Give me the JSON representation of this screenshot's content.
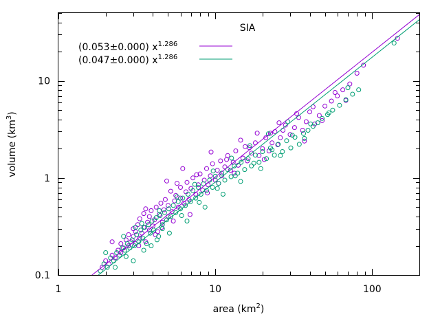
{
  "chart_data": {
    "type": "scatter",
    "title": "SIA",
    "xlabel_main": "area (km",
    "xlabel_sup": "2",
    "xlabel_end": ")",
    "ylabel_main": "volume (km",
    "ylabel_sup": "3",
    "ylabel_end": ")",
    "xscale": "log",
    "yscale": "log",
    "xlim": [
      1,
      200
    ],
    "ylim": [
      0.1,
      50
    ],
    "xticks": [
      {
        "v": 1,
        "label": "1"
      },
      {
        "v": 10,
        "label": "10"
      },
      {
        "v": 100,
        "label": "100"
      }
    ],
    "yticks": [
      {
        "v": 0.1,
        "label": "0.1"
      },
      {
        "v": 1,
        "label": "1"
      },
      {
        "v": 10,
        "label": "10"
      }
    ],
    "grid": false,
    "legend_position": "top-left",
    "series": [
      {
        "name_main": "(0.053±0.000) x",
        "name_sup": "1.286",
        "color": "#9400d3",
        "marker": "open-circle",
        "fit": {
          "a": 0.053,
          "b": 1.286
        },
        "points": [
          [
            1.9,
            0.12
          ],
          [
            2.0,
            0.14
          ],
          [
            2.1,
            0.13
          ],
          [
            2.2,
            0.16
          ],
          [
            2.3,
            0.15
          ],
          [
            2.4,
            0.18
          ],
          [
            2.5,
            0.17
          ],
          [
            2.5,
            0.21
          ],
          [
            2.6,
            0.19
          ],
          [
            2.7,
            0.23
          ],
          [
            2.8,
            0.2
          ],
          [
            2.8,
            0.26
          ],
          [
            2.9,
            0.22
          ],
          [
            3.0,
            0.25
          ],
          [
            3.0,
            0.3
          ],
          [
            3.1,
            0.21
          ],
          [
            3.1,
            0.28
          ],
          [
            3.2,
            0.33
          ],
          [
            3.3,
            0.24
          ],
          [
            3.3,
            0.38
          ],
          [
            3.4,
            0.27
          ],
          [
            3.5,
            0.31
          ],
          [
            3.5,
            0.43
          ],
          [
            3.6,
            0.22
          ],
          [
            3.7,
            0.35
          ],
          [
            3.8,
            0.29
          ],
          [
            3.8,
            0.4
          ],
          [
            3.9,
            0.46
          ],
          [
            4.0,
            0.32
          ],
          [
            4.1,
            0.37
          ],
          [
            4.2,
            0.5
          ],
          [
            4.3,
            0.28
          ],
          [
            4.4,
            0.42
          ],
          [
            4.5,
            0.55
          ],
          [
            4.6,
            0.35
          ],
          [
            4.7,
            0.47
          ],
          [
            4.8,
            0.6
          ],
          [
            5.0,
            0.4
          ],
          [
            5.0,
            0.52
          ],
          [
            5.2,
            0.73
          ],
          [
            5.3,
            0.45
          ],
          [
            5.5,
            0.58
          ],
          [
            5.6,
            0.66
          ],
          [
            5.8,
            0.5
          ],
          [
            6.0,
            0.62
          ],
          [
            6.0,
            0.8
          ],
          [
            6.3,
            0.55
          ],
          [
            6.5,
            0.72
          ],
          [
            6.6,
            0.9
          ],
          [
            6.8,
            0.6
          ],
          [
            7.0,
            0.78
          ],
          [
            7.2,
            1.0
          ],
          [
            7.5,
            0.68
          ],
          [
            7.8,
            0.85
          ],
          [
            8.0,
            1.1
          ],
          [
            8.3,
            0.75
          ],
          [
            8.5,
            0.95
          ],
          [
            8.8,
            1.25
          ],
          [
            9.0,
            0.85
          ],
          [
            9.3,
            1.05
          ],
          [
            9.6,
            1.4
          ],
          [
            10.0,
            0.95
          ],
          [
            10.3,
            1.2
          ],
          [
            10.8,
            1.5
          ],
          [
            11.0,
            1.05
          ],
          [
            11.5,
            1.3
          ],
          [
            12.0,
            1.7
          ],
          [
            12.5,
            1.2
          ],
          [
            13.0,
            1.45
          ],
          [
            13.5,
            1.9
          ],
          [
            14.0,
            1.35
          ],
          [
            15.0,
            1.6
          ],
          [
            15.5,
            2.1
          ],
          [
            16.0,
            1.5
          ],
          [
            17.0,
            1.8
          ],
          [
            18.0,
            2.3
          ],
          [
            19.0,
            1.7
          ],
          [
            20.0,
            2.0
          ],
          [
            21.0,
            2.6
          ],
          [
            22.0,
            1.9
          ],
          [
            23.0,
            2.3
          ],
          [
            24.0,
            3.0
          ],
          [
            25.0,
            2.2
          ],
          [
            26.0,
            2.6
          ],
          [
            28.0,
            3.5
          ],
          [
            30.0,
            2.8
          ],
          [
            32.0,
            3.3
          ],
          [
            34.0,
            4.2
          ],
          [
            36.0,
            3.1
          ],
          [
            38.0,
            3.8
          ],
          [
            40.0,
            4.8
          ],
          [
            43.0,
            3.6
          ],
          [
            46.0,
            4.4
          ],
          [
            50.0,
            5.5
          ],
          [
            55.0,
            6.2
          ],
          [
            60.0,
            7.0
          ],
          [
            65.0,
            8.1
          ],
          [
            72.0,
            9.3
          ],
          [
            80.0,
            12.0
          ],
          [
            88.0,
            14.5
          ],
          [
            145.0,
            27.5
          ],
          [
            4.9,
            0.93
          ],
          [
            6.2,
            1.25
          ],
          [
            9.4,
            1.85
          ],
          [
            14.5,
            2.45
          ],
          [
            18.5,
            2.9
          ],
          [
            25.5,
            3.7
          ],
          [
            33.0,
            4.6
          ],
          [
            2.2,
            0.22
          ],
          [
            3.6,
            0.48
          ],
          [
            5.7,
            0.88
          ],
          [
            7.6,
            1.08
          ],
          [
            11.8,
            1.55
          ],
          [
            16.5,
            2.05
          ],
          [
            27.0,
            3.1
          ],
          [
            42.0,
            5.4
          ],
          [
            58.0,
            7.6
          ],
          [
            3.25,
            0.2
          ],
          [
            4.15,
            0.26
          ],
          [
            6.9,
            0.42
          ],
          [
            10.5,
            0.88
          ],
          [
            20.5,
            1.55
          ],
          [
            37.0,
            2.4
          ],
          [
            48.0,
            3.9
          ],
          [
            68.0,
            6.3
          ],
          [
            13.2,
            1.12
          ],
          [
            8.9,
            0.7
          ],
          [
            5.4,
            0.36
          ],
          [
            4.55,
            0.31
          ],
          [
            22.5,
            2.9
          ]
        ]
      },
      {
        "name_main": "(0.047±0.000) x",
        "name_sup": "1.286",
        "color": "#009e73",
        "marker": "open-circle",
        "fit": {
          "a": 0.047,
          "b": 1.286
        },
        "points": [
          [
            1.85,
            0.11
          ],
          [
            1.95,
            0.13
          ],
          [
            2.05,
            0.12
          ],
          [
            2.15,
            0.15
          ],
          [
            2.25,
            0.14
          ],
          [
            2.35,
            0.17
          ],
          [
            2.45,
            0.16
          ],
          [
            2.55,
            0.19
          ],
          [
            2.65,
            0.18
          ],
          [
            2.75,
            0.21
          ],
          [
            2.85,
            0.19
          ],
          [
            2.95,
            0.23
          ],
          [
            3.05,
            0.2
          ],
          [
            3.15,
            0.26
          ],
          [
            3.25,
            0.22
          ],
          [
            3.35,
            0.29
          ],
          [
            3.45,
            0.24
          ],
          [
            3.55,
            0.31
          ],
          [
            3.65,
            0.21
          ],
          [
            3.75,
            0.33
          ],
          [
            3.85,
            0.27
          ],
          [
            3.95,
            0.36
          ],
          [
            4.05,
            0.29
          ],
          [
            4.2,
            0.39
          ],
          [
            4.35,
            0.25
          ],
          [
            4.45,
            0.41
          ],
          [
            4.6,
            0.33
          ],
          [
            4.75,
            0.44
          ],
          [
            4.9,
            0.37
          ],
          [
            5.05,
            0.48
          ],
          [
            5.2,
            0.4
          ],
          [
            5.4,
            0.52
          ],
          [
            5.6,
            0.44
          ],
          [
            5.8,
            0.57
          ],
          [
            6.0,
            0.48
          ],
          [
            6.2,
            0.62
          ],
          [
            6.45,
            0.52
          ],
          [
            6.7,
            0.68
          ],
          [
            6.95,
            0.57
          ],
          [
            7.2,
            0.74
          ],
          [
            7.5,
            0.62
          ],
          [
            7.8,
            0.8
          ],
          [
            8.1,
            0.68
          ],
          [
            8.4,
            0.87
          ],
          [
            8.8,
            0.74
          ],
          [
            9.2,
            0.95
          ],
          [
            9.6,
            0.8
          ],
          [
            10.0,
            1.04
          ],
          [
            10.5,
            0.88
          ],
          [
            11.0,
            1.12
          ],
          [
            11.5,
            0.95
          ],
          [
            12.0,
            1.22
          ],
          [
            12.6,
            1.03
          ],
          [
            13.2,
            1.33
          ],
          [
            13.9,
            1.12
          ],
          [
            14.6,
            1.45
          ],
          [
            15.4,
            1.22
          ],
          [
            16.2,
            1.58
          ],
          [
            17.0,
            1.33
          ],
          [
            18.0,
            1.72
          ],
          [
            19.0,
            1.45
          ],
          [
            20.0,
            1.87
          ],
          [
            21.2,
            1.58
          ],
          [
            22.5,
            2.04
          ],
          [
            23.8,
            1.72
          ],
          [
            25.2,
            2.22
          ],
          [
            26.8,
            1.87
          ],
          [
            28.5,
            2.42
          ],
          [
            30.3,
            2.04
          ],
          [
            32.2,
            2.63
          ],
          [
            34.3,
            2.22
          ],
          [
            36.5,
            2.87
          ],
          [
            39.0,
            3.1
          ],
          [
            42.0,
            3.4
          ],
          [
            45.0,
            3.7
          ],
          [
            48.0,
            4.1
          ],
          [
            52.0,
            4.5
          ],
          [
            56.0,
            5.0
          ],
          [
            62.0,
            5.6
          ],
          [
            68.0,
            6.4
          ],
          [
            75.0,
            7.3
          ],
          [
            82.0,
            8.1
          ],
          [
            138.0,
            24.5
          ],
          [
            2.3,
            0.12
          ],
          [
            3.0,
            0.14
          ],
          [
            3.9,
            0.2
          ],
          [
            5.1,
            0.27
          ],
          [
            6.6,
            0.36
          ],
          [
            8.6,
            0.5
          ],
          [
            11.2,
            0.68
          ],
          [
            14.5,
            0.92
          ],
          [
            19.5,
            1.25
          ],
          [
            26.0,
            1.7
          ],
          [
            37.0,
            2.55
          ],
          [
            2.6,
            0.25
          ],
          [
            3.4,
            0.34
          ],
          [
            4.4,
            0.46
          ],
          [
            5.7,
            0.64
          ],
          [
            7.4,
            0.86
          ],
          [
            9.7,
            1.18
          ],
          [
            12.7,
            1.6
          ],
          [
            16.6,
            2.15
          ],
          [
            21.8,
            2.85
          ],
          [
            29.0,
            3.8
          ],
          [
            2.0,
            0.17
          ],
          [
            2.7,
            0.155
          ],
          [
            3.5,
            0.18
          ],
          [
            4.6,
            0.3
          ],
          [
            6.1,
            0.41
          ],
          [
            7.9,
            0.56
          ],
          [
            10.3,
            0.78
          ],
          [
            13.4,
            1.05
          ],
          [
            17.6,
            1.42
          ],
          [
            23.0,
            1.95
          ],
          [
            31.0,
            2.75
          ],
          [
            40.5,
            3.6
          ],
          [
            53.0,
            4.7
          ],
          [
            70.0,
            8.5
          ],
          [
            3.1,
            0.31
          ],
          [
            4.25,
            0.23
          ]
        ]
      }
    ]
  }
}
